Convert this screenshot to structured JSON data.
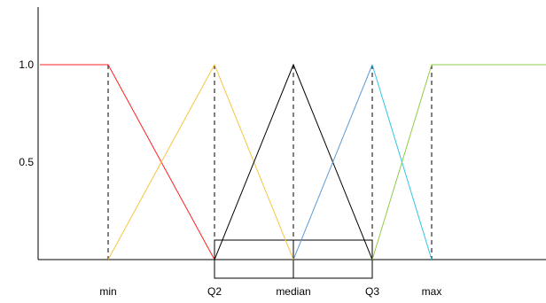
{
  "chart_data": {
    "type": "line",
    "title": "",
    "xlabel": "",
    "ylabel": "",
    "ylim": [
      0,
      1.2
    ],
    "y_ticks": [
      {
        "value": 0.5,
        "label": "0.5"
      },
      {
        "value": 1.0,
        "label": "1.0"
      }
    ],
    "x_ticks": [
      {
        "key": "min",
        "label": "min"
      },
      {
        "key": "q2",
        "label": "Q2"
      },
      {
        "key": "median",
        "label": "median"
      },
      {
        "key": "q3",
        "label": "Q3"
      },
      {
        "key": "max",
        "label": "max"
      }
    ],
    "series": [
      {
        "color": "#ff2020",
        "points": [
          [
            "start",
            1.0
          ],
          [
            "min",
            1.0
          ],
          [
            "q2",
            0.0
          ]
        ]
      },
      {
        "color": "#f5c542",
        "points": [
          [
            "min",
            0.0
          ],
          [
            "q2",
            1.0
          ],
          [
            "median",
            0.0
          ]
        ]
      },
      {
        "color": "#000000",
        "points": [
          [
            "q2",
            0.0
          ],
          [
            "median",
            1.0
          ],
          [
            "q3",
            0.0
          ]
        ]
      },
      {
        "color": "#5b9bd5",
        "points": [
          [
            "median",
            0.0
          ],
          [
            "q3",
            1.0
          ]
        ]
      },
      {
        "color": "#33c4e6",
        "points": [
          [
            "q3",
            1.0
          ],
          [
            "max",
            0.0
          ]
        ]
      },
      {
        "color": "#8fcc47",
        "points": [
          [
            "q3",
            0.0
          ],
          [
            "max",
            1.0
          ],
          [
            "end",
            1.0
          ]
        ]
      }
    ],
    "dashed_guides": [
      "min",
      "q2",
      "median",
      "q3",
      "max"
    ],
    "boxplot": {
      "from": "q2",
      "to": "q3",
      "median": "median"
    }
  }
}
